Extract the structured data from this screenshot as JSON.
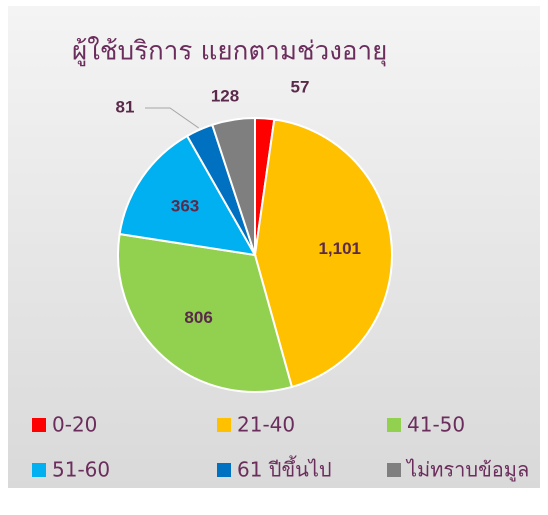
{
  "chart_data": {
    "type": "pie",
    "title": "ผู้ใช้บริการ แยกตามช่วงอายุ",
    "categories": [
      "0-20",
      "21-40",
      "41-50",
      "51-60",
      "61 ปีขึ้นไป",
      "ไม่ทราบข้อมูล"
    ],
    "values": [
      57,
      1101,
      806,
      363,
      81,
      128
    ],
    "value_labels": [
      "57",
      "1,101",
      "806",
      "363",
      "81",
      "128"
    ],
    "colors": [
      "#ff0000",
      "#ffc000",
      "#92d050",
      "#00b0f0",
      "#0070c0",
      "#7f7f7f"
    ],
    "legend": "bottom"
  }
}
